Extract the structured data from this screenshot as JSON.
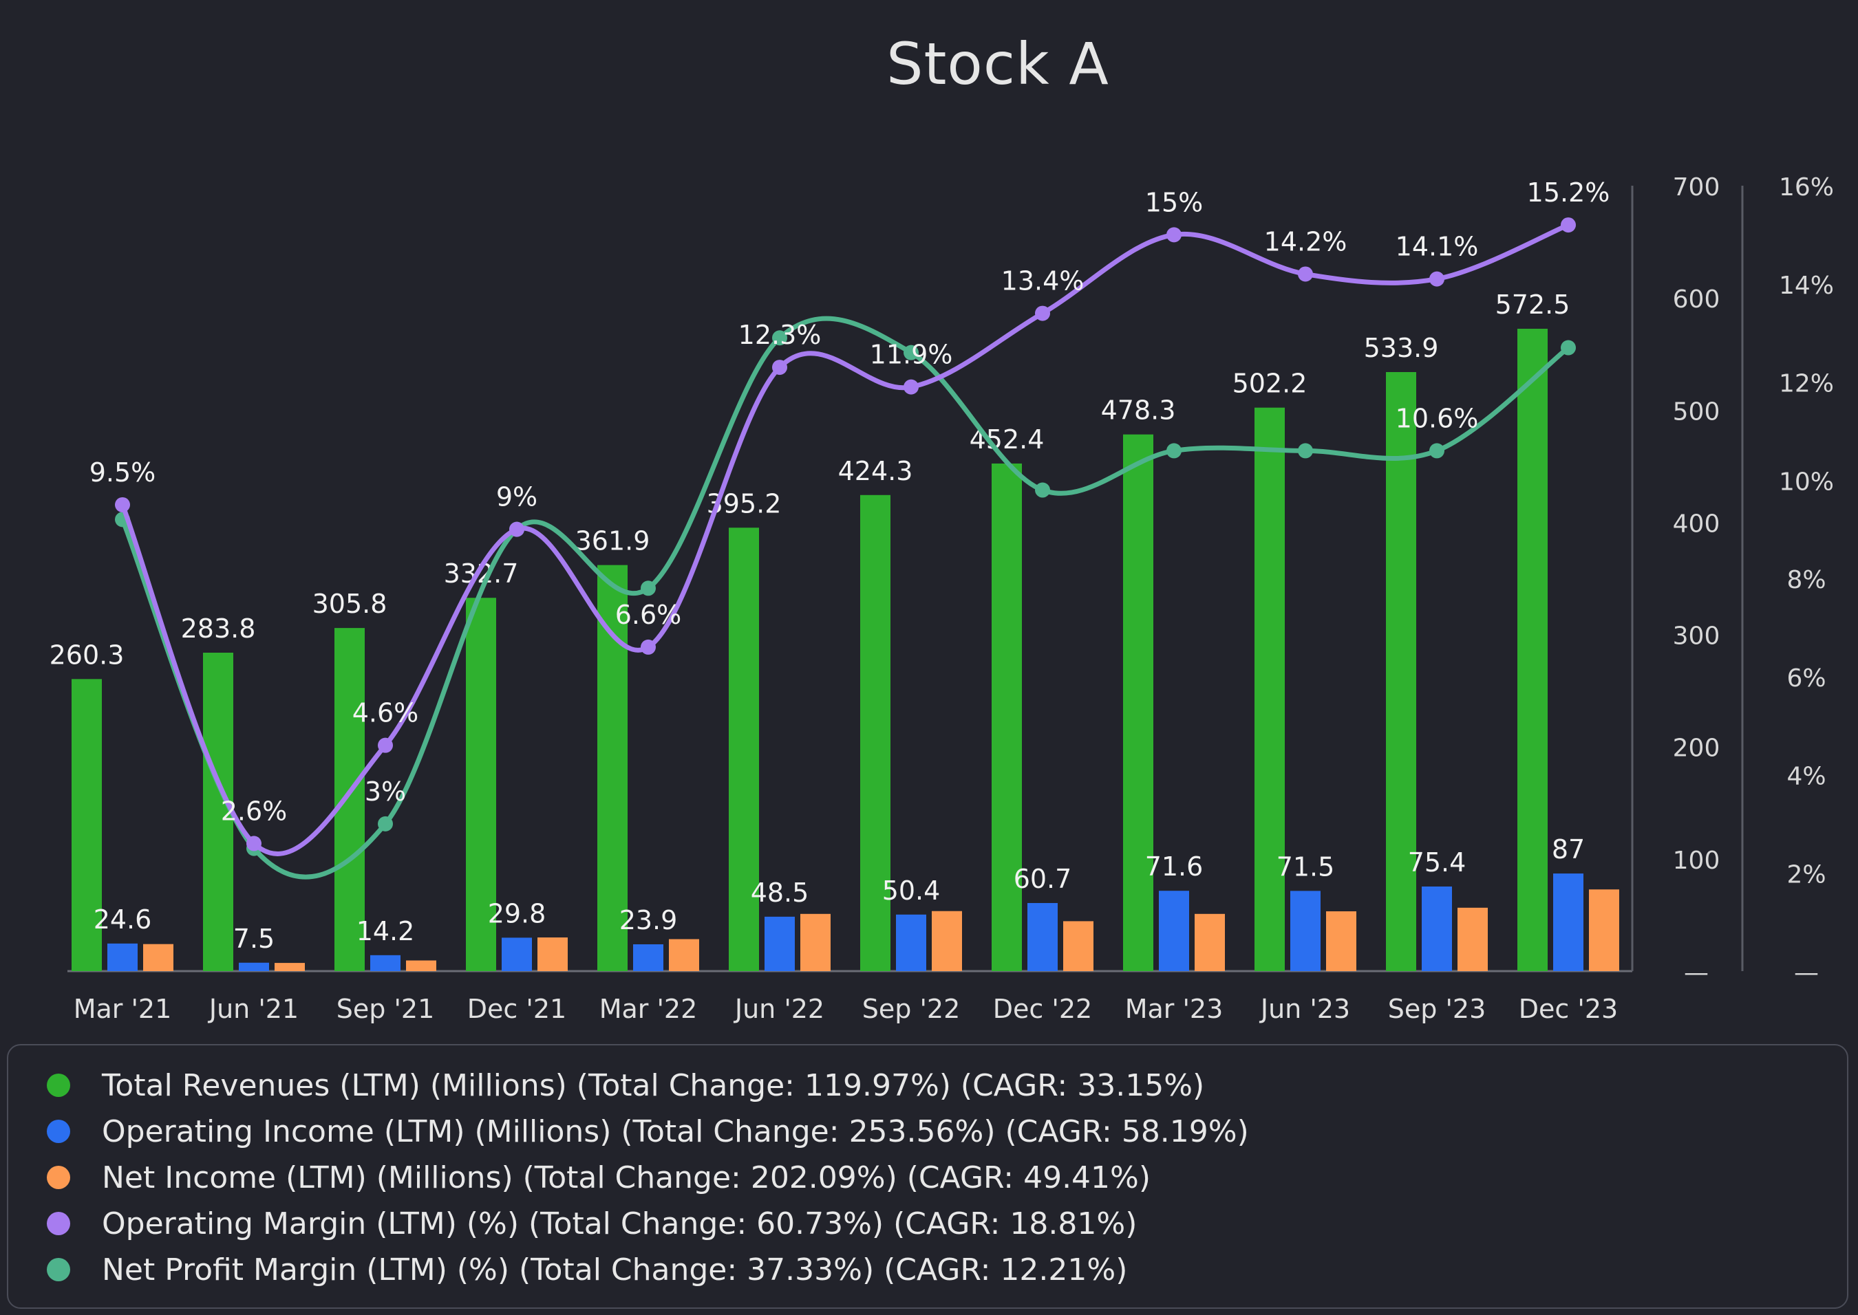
{
  "chart_data": {
    "type": "bar",
    "title": "Stock A",
    "categories": [
      "Mar '21",
      "Jun '21",
      "Sep '21",
      "Dec '21",
      "Mar '22",
      "Jun '22",
      "Sep '22",
      "Dec '22",
      "Mar '23",
      "Jun '23",
      "Sep '23",
      "Dec '23"
    ],
    "series": [
      {
        "name": "Total Revenues (LTM) (Millions) (Total Change: 119.97%) (CAGR: 33.15%)",
        "type": "bar",
        "axis": "left",
        "color": "#2fb12f",
        "values": [
          260.3,
          283.8,
          305.8,
          332.7,
          361.9,
          395.2,
          424.3,
          452.4,
          478.3,
          502.2,
          533.9,
          572.5
        ],
        "labels": [
          "260.3",
          "283.8",
          "305.8",
          "332.7",
          "361.9",
          "395.2",
          "424.3",
          "452.4",
          "478.3",
          "502.2",
          "533.9",
          "572.5"
        ]
      },
      {
        "name": "Operating Income (LTM) (Millions) (Total Change: 253.56%) (CAGR: 58.19%)",
        "type": "bar",
        "axis": "left",
        "color": "#2b6ff0",
        "values": [
          24.6,
          7.5,
          14.2,
          29.8,
          23.9,
          48.5,
          50.4,
          60.7,
          71.6,
          71.5,
          75.4,
          87
        ],
        "labels": [
          "24.6",
          "7.5",
          "14.2",
          "29.8",
          "23.9",
          "48.5",
          "50.4",
          "60.7",
          "71.6",
          "71.5",
          "75.4",
          "87"
        ]
      },
      {
        "name": "Net Income (LTM) (Millions) (Total Change: 202.09%) (CAGR: 49.41%)",
        "type": "bar",
        "axis": "left",
        "color": "#fd9a52",
        "values": [
          24.1,
          7.3,
          9.5,
          30.0,
          28.5,
          51.0,
          53.5,
          44.5,
          51.0,
          53.3,
          56.5,
          72.8
        ]
      },
      {
        "name": "Operating Margin (LTM) (%) (Total Change: 60.73%) (CAGR: 18.81%)",
        "type": "line",
        "axis": "right",
        "color": "#a77cf0",
        "values": [
          9.5,
          2.6,
          4.6,
          9.0,
          6.6,
          12.3,
          11.9,
          13.4,
          15.0,
          14.2,
          14.1,
          15.2
        ],
        "labels": [
          "9.5%",
          "2.6%",
          "4.6%",
          "9%",
          "6.6%",
          "12.3%",
          "11.9%",
          "13.4%",
          "15%",
          "14.2%",
          "14.1%",
          "15.2%"
        ]
      },
      {
        "name": "Net Profit Margin (LTM) (%) (Total Change: 37.33%) (CAGR: 12.21%)",
        "type": "line",
        "axis": "right",
        "color": "#4eb38c",
        "values": [
          9.2,
          2.5,
          3.0,
          9.0,
          7.8,
          12.9,
          12.6,
          9.8,
          10.6,
          10.6,
          10.6,
          12.7
        ],
        "labels": [
          "",
          "",
          "3%",
          "",
          "",
          "",
          "",
          "",
          "",
          "",
          "10.6%",
          ""
        ]
      }
    ],
    "yaxis_left": {
      "min": 0,
      "max": 700,
      "ticks": [
        0,
        100,
        200,
        300,
        400,
        500,
        600,
        700
      ],
      "tick_labels": [
        "—",
        "100",
        "200",
        "300",
        "400",
        "500",
        "600",
        "700"
      ]
    },
    "yaxis_right": {
      "min": 0,
      "max": 16,
      "ticks": [
        0,
        2,
        4,
        6,
        8,
        10,
        12,
        14,
        16
      ],
      "tick_labels": [
        "—",
        "2%",
        "4%",
        "6%",
        "8%",
        "10%",
        "12%",
        "14%",
        "16%"
      ]
    },
    "grid": false,
    "legend_position": "bottom"
  }
}
